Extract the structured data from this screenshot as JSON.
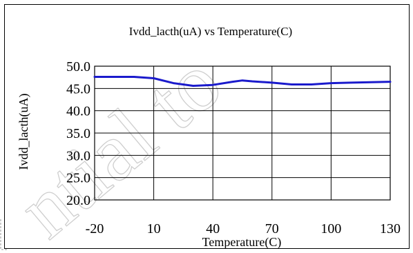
{
  "chart_data": {
    "type": "line",
    "title": "Ivdd_lacth(uA) vs Temperature(C)",
    "xlabel": "Temperature(C)",
    "ylabel": "Ivdd_lacth(uA)",
    "xlim": [
      -20,
      130
    ],
    "ylim": [
      20,
      50
    ],
    "x_ticks": [
      -20,
      10,
      40,
      70,
      100,
      130
    ],
    "y_ticks": [
      20,
      25,
      30,
      35,
      40,
      45,
      50
    ],
    "x_tick_labels": [
      "-20",
      "10",
      "40",
      "70",
      "100",
      "130"
    ],
    "y_tick_labels": [
      "20.0",
      "25.0",
      "30.0",
      "35.0",
      "40.0",
      "45.0",
      "50.0"
    ],
    "grid": true,
    "legend": "none",
    "series": [
      {
        "color": "#1a1acc",
        "x": [
          -20,
          -10,
          0,
          10,
          20,
          30,
          40,
          50,
          55,
          60,
          70,
          80,
          90,
          100,
          110,
          120,
          130
        ],
        "y": [
          47.6,
          47.6,
          47.6,
          47.3,
          46.2,
          45.6,
          45.8,
          46.5,
          46.8,
          46.6,
          46.3,
          45.9,
          45.9,
          46.2,
          46.3,
          46.4,
          46.5
        ]
      }
    ]
  },
  "watermark": {
    "text": "ntial to",
    "color": "#c9c9c9"
  }
}
